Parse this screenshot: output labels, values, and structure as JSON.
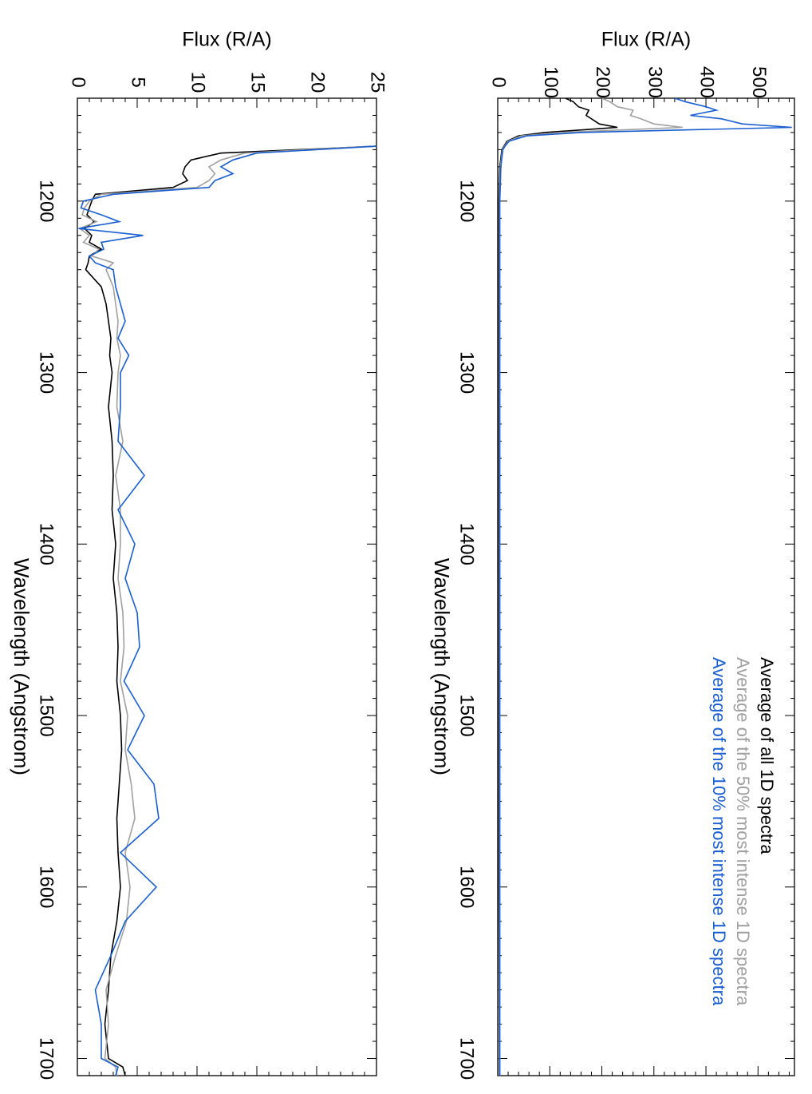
{
  "colors": {
    "all": "#000000",
    "top50": "#a0a0a0",
    "top10": "#1a5fd0",
    "axis": "#000000"
  },
  "chart_data": [
    {
      "type": "line",
      "panel": "upper",
      "xlabel": "Wavelength (Angstrom)",
      "ylabel": "Flux (R/A)",
      "xlim": [
        1140,
        1710
      ],
      "ylim": [
        0,
        570
      ],
      "xticks": [
        1200,
        1300,
        1400,
        1500,
        1600,
        1700
      ],
      "yticks": [
        0,
        100,
        200,
        300,
        400,
        500
      ],
      "rotated": "90deg clockwise",
      "legend": {
        "placement": "top-right",
        "entries": [
          {
            "label": "Average of all 1D spectra",
            "color_key": "all"
          },
          {
            "label": "Average of the 50% most intense 1D spectra",
            "color_key": "top50"
          },
          {
            "label": "Average of the 10% most intense 1D spectra",
            "color_key": "top10"
          }
        ]
      },
      "series": [
        {
          "color_key": "all",
          "x": [
            1140,
            1142,
            1145,
            1147,
            1150,
            1152,
            1155,
            1157,
            1160,
            1162,
            1165,
            1168,
            1170,
            1175,
            1180,
            1190,
            1200,
            1220,
            1260,
            1300,
            1400,
            1500,
            1600,
            1700,
            1710
          ],
          "y": [
            130,
            145,
            155,
            175,
            170,
            180,
            195,
            230,
            90,
            40,
            18,
            12,
            8,
            6,
            4,
            3,
            2,
            2,
            2,
            2,
            2,
            2,
            2,
            3,
            3
          ]
        },
        {
          "color_key": "top50",
          "x": [
            1140,
            1142,
            1145,
            1147,
            1150,
            1152,
            1155,
            1157,
            1160,
            1162,
            1165,
            1168,
            1170,
            1175,
            1180,
            1190,
            1200,
            1220,
            1260,
            1300,
            1400,
            1500,
            1600,
            1700,
            1710
          ],
          "y": [
            200,
            215,
            230,
            260,
            255,
            275,
            300,
            355,
            120,
            45,
            20,
            13,
            9,
            7,
            5,
            4,
            3,
            3,
            3,
            3,
            3,
            3,
            3,
            3,
            3
          ]
        },
        {
          "color_key": "top10",
          "x": [
            1140,
            1142,
            1145,
            1147,
            1150,
            1152,
            1155,
            1157,
            1160,
            1162,
            1165,
            1168,
            1170,
            1175,
            1180,
            1190,
            1200,
            1220,
            1260,
            1300,
            1400,
            1500,
            1600,
            1700,
            1710
          ],
          "y": [
            340,
            360,
            400,
            420,
            370,
            430,
            470,
            565,
            160,
            55,
            22,
            14,
            10,
            8,
            6,
            5,
            4,
            4,
            4,
            4,
            4,
            4,
            4,
            4,
            4
          ]
        }
      ]
    },
    {
      "type": "line",
      "panel": "lower",
      "xlabel": "Wavelength (Angstrom)",
      "ylabel": "Flux (R/A)",
      "xlim": [
        1140,
        1710
      ],
      "ylim": [
        0,
        25
      ],
      "xticks": [
        1200,
        1300,
        1400,
        1500,
        1600,
        1700
      ],
      "yticks": [
        0,
        5,
        10,
        15,
        20,
        25
      ],
      "rotated": "90deg clockwise",
      "series": [
        {
          "color_key": "all",
          "x": [
            1168,
            1172,
            1176,
            1180,
            1184,
            1188,
            1192,
            1196,
            1200,
            1204,
            1208,
            1212,
            1216,
            1220,
            1224,
            1228,
            1232,
            1236,
            1240,
            1250,
            1260,
            1270,
            1280,
            1290,
            1300,
            1320,
            1340,
            1360,
            1380,
            1400,
            1420,
            1440,
            1460,
            1480,
            1500,
            1520,
            1540,
            1560,
            1580,
            1600,
            1620,
            1640,
            1660,
            1680,
            1700,
            1705,
            1710
          ],
          "y": [
            25,
            12,
            9.5,
            9,
            8.8,
            9.2,
            8,
            1.5,
            1.2,
            1.0,
            0.8,
            1.4,
            0.6,
            1.2,
            1.0,
            2.0,
            1.0,
            0.9,
            0.7,
            2.0,
            2.4,
            2.6,
            2.8,
            2.7,
            2.9,
            2.6,
            2.9,
            3.0,
            2.9,
            3.2,
            3.0,
            3.3,
            3.4,
            3.3,
            3.6,
            3.7,
            3.5,
            3.3,
            3.4,
            3.6,
            3.3,
            2.8,
            2.6,
            2.3,
            2.6,
            3.8,
            4.0
          ]
        },
        {
          "color_key": "top50",
          "x": [
            1168,
            1172,
            1176,
            1180,
            1184,
            1188,
            1192,
            1196,
            1200,
            1204,
            1208,
            1212,
            1216,
            1220,
            1224,
            1228,
            1232,
            1236,
            1240,
            1250,
            1260,
            1270,
            1280,
            1290,
            1300,
            1320,
            1340,
            1360,
            1380,
            1400,
            1420,
            1440,
            1460,
            1480,
            1500,
            1520,
            1540,
            1560,
            1580,
            1600,
            1620,
            1640,
            1660,
            1680,
            1700,
            1705,
            1710
          ],
          "y": [
            24.5,
            14,
            12,
            11,
            11.5,
            11,
            10,
            2.0,
            1.0,
            0.6,
            0.4,
            1.6,
            0.2,
            1.0,
            0.5,
            1.8,
            1.2,
            3.0,
            2.4,
            3.0,
            3.2,
            3.4,
            3.3,
            3.6,
            3.4,
            3.3,
            3.8,
            3.2,
            3.6,
            3.6,
            3.4,
            3.8,
            3.9,
            3.6,
            4.2,
            4.0,
            4.5,
            4.8,
            4.0,
            4.4,
            4.1,
            3.2,
            2.4,
            2.6,
            2.3,
            3.2,
            3.3
          ]
        },
        {
          "color_key": "top10",
          "x": [
            1168,
            1172,
            1176,
            1180,
            1184,
            1188,
            1192,
            1196,
            1200,
            1204,
            1208,
            1212,
            1216,
            1220,
            1224,
            1228,
            1232,
            1236,
            1240,
            1250,
            1260,
            1270,
            1280,
            1290,
            1300,
            1320,
            1340,
            1360,
            1380,
            1400,
            1420,
            1440,
            1460,
            1480,
            1500,
            1520,
            1540,
            1560,
            1580,
            1600,
            1620,
            1640,
            1660,
            1680,
            1700,
            1705,
            1710
          ],
          "y": [
            25,
            15,
            13,
            12,
            13,
            11.5,
            11,
            3.0,
            0.5,
            0.3,
            2.0,
            3.5,
            0.1,
            5.5,
            2.0,
            2.2,
            1.0,
            1.5,
            3.0,
            3.2,
            3.6,
            4.0,
            3.4,
            4.3,
            3.6,
            3.6,
            3.4,
            5.6,
            3.4,
            4.8,
            4.0,
            5.0,
            5.2,
            3.9,
            5.6,
            4.2,
            6.4,
            6.8,
            3.6,
            6.6,
            4.0,
            2.8,
            1.5,
            2.0,
            2.0,
            3.4,
            3.2
          ]
        }
      ]
    }
  ]
}
